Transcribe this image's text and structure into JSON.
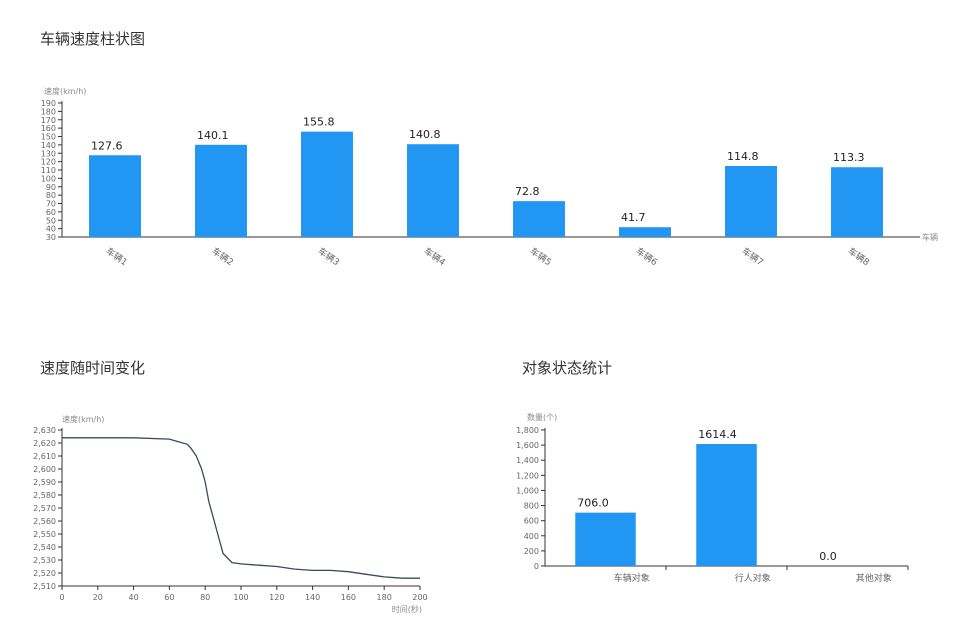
{
  "chart_data": [
    {
      "type": "bar",
      "title": "车辆速度柱状图",
      "ylabel": "速度(km/h)",
      "xlabel": "车辆",
      "ylim": [
        30,
        190
      ],
      "yticks": [
        30,
        40,
        50,
        60,
        70,
        80,
        90,
        100,
        110,
        120,
        130,
        140,
        150,
        160,
        170,
        180,
        190
      ],
      "categories": [
        "车辆1",
        "车辆2",
        "车辆3",
        "车辆4",
        "车辆5",
        "车辆6",
        "车辆7",
        "车辆8"
      ],
      "values": [
        127.6,
        140.1,
        155.8,
        140.8,
        72.8,
        41.7,
        114.8,
        113.3
      ],
      "value_labels": [
        "127.6",
        "140.1",
        "155.8",
        "140.8",
        "72.8",
        "41.7",
        "114.8",
        "113.3"
      ],
      "bar_color": "#2196F3"
    },
    {
      "type": "line",
      "title": "速度随时间变化",
      "ylabel": "速度(km/h)",
      "xlabel": "时间(秒)",
      "xlim": [
        0,
        200
      ],
      "ylim": [
        2510,
        2630
      ],
      "xticks": [
        0,
        20,
        40,
        60,
        80,
        100,
        120,
        140,
        160,
        180,
        200
      ],
      "yticks": [
        2510,
        2520,
        2530,
        2540,
        2550,
        2560,
        2570,
        2580,
        2590,
        2600,
        2610,
        2620,
        2630
      ],
      "x": [
        0,
        20,
        40,
        60,
        65,
        70,
        72,
        75,
        78,
        80,
        82,
        85,
        88,
        90,
        95,
        100,
        110,
        120,
        130,
        140,
        150,
        160,
        170,
        180,
        190,
        200
      ],
      "y": [
        2624,
        2624,
        2624,
        2623,
        2621,
        2619,
        2616,
        2610,
        2600,
        2590,
        2575,
        2560,
        2545,
        2535,
        2528,
        2527,
        2526,
        2525,
        2523,
        2522,
        2522,
        2521,
        2519,
        2517,
        2516,
        2516
      ],
      "line_color": "#3a4a5a"
    },
    {
      "type": "bar",
      "title": "对象状态统计",
      "ylabel": "数量(个)",
      "ylim": [
        0,
        1800
      ],
      "yticks": [
        0,
        200,
        400,
        600,
        800,
        1000,
        1200,
        1400,
        1600,
        1800
      ],
      "ytick_labels": [
        "0",
        "200",
        "400",
        "600",
        "800",
        "1,000",
        "1,200",
        "1,400",
        "1,600",
        "1,800"
      ],
      "categories": [
        "车辆对象",
        "行人对象",
        "其他对象"
      ],
      "values": [
        706.0,
        1614.4,
        0.0
      ],
      "value_labels": [
        "706.0",
        "1614.4",
        "0.0"
      ],
      "bar_color": "#2196F3"
    }
  ]
}
